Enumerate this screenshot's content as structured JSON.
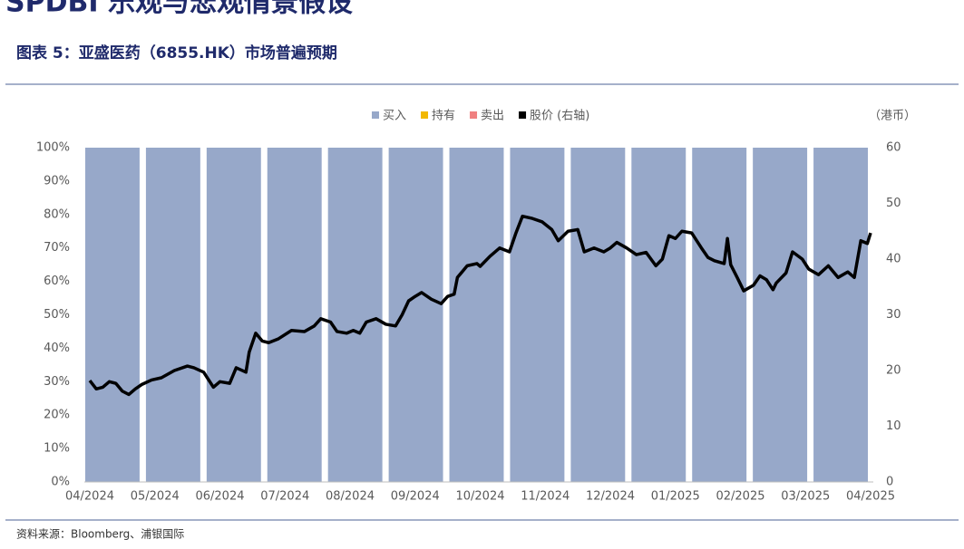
{
  "header": {
    "title": "SPDBI 乐观与悲观情景假设"
  },
  "figure_title": "图表 5：亚盛医药（6855.HK）市场普遍预期",
  "source": "资料来源：Bloomberg、浦银国际",
  "chart_data": {
    "type": "stacked-bar-line",
    "y2_unit": "（港币）",
    "categories": [
      null,
      null,
      null,
      null,
      null,
      null,
      null,
      null,
      null,
      null,
      null,
      null,
      null
    ],
    "series": [
      {
        "name": "买入",
        "color": "#97a8c9",
        "values": [
          100,
          100,
          100,
          100,
          100,
          100,
          100,
          100,
          100,
          100,
          100,
          100,
          100
        ]
      },
      {
        "name": "持有",
        "color": "#f2b800",
        "values": [
          0,
          0,
          0,
          0,
          0,
          0,
          0,
          0,
          0,
          0,
          0,
          0,
          0
        ]
      },
      {
        "name": "卖出",
        "color": "#f08080",
        "values": [
          0,
          0,
          0,
          0,
          0,
          0,
          0,
          0,
          0,
          0,
          0,
          0,
          0
        ]
      },
      {
        "name": "股价 (右轴)",
        "color": "#000000",
        "axis": "y2",
        "type": "line",
        "x": [
          0,
          0.1,
          0.2,
          0.3,
          0.4,
          0.5,
          0.6,
          0.7,
          0.8,
          0.95,
          1.1,
          1.3,
          1.5,
          1.6,
          1.75,
          1.9,
          2.0,
          2.15,
          2.25,
          2.4,
          2.45,
          2.55,
          2.65,
          2.75,
          2.9,
          3.1,
          3.3,
          3.45,
          3.55,
          3.7,
          3.8,
          3.95,
          4.05,
          4.15,
          4.25,
          4.4,
          4.55,
          4.7,
          4.8,
          4.9,
          5.0,
          5.1,
          5.25,
          5.4,
          5.5,
          5.6,
          5.65,
          5.8,
          5.95,
          6.0,
          6.15,
          6.3,
          6.45,
          6.55,
          6.65,
          6.8,
          6.95,
          7.1,
          7.2,
          7.35,
          7.5,
          7.6,
          7.75,
          7.9,
          8.0,
          8.1,
          8.25,
          8.4,
          8.55,
          8.7,
          8.8,
          8.9,
          9.0,
          9.1,
          9.25,
          9.4,
          9.5,
          9.6,
          9.75,
          9.8,
          9.85,
          9.95,
          10.05,
          10.2,
          10.3,
          10.4,
          10.5,
          10.55,
          10.7,
          10.8,
          10.95,
          11.05,
          11.2,
          11.35,
          11.5,
          11.65,
          11.75,
          11.85,
          11.95,
          12.0
        ],
        "values": [
          18.2,
          16.7,
          17,
          18,
          17.7,
          16.3,
          15.7,
          16.7,
          17.5,
          18.3,
          18.7,
          20,
          20.8,
          20.5,
          19.7,
          17,
          18,
          17.7,
          20.5,
          19.7,
          23.3,
          26.7,
          25.3,
          25,
          25.7,
          27.2,
          27,
          28,
          29.3,
          28.7,
          27,
          26.7,
          27.2,
          26.7,
          28.7,
          29.3,
          28.3,
          28,
          30,
          32.5,
          33.3,
          34,
          32.8,
          32,
          33.3,
          33.7,
          36.7,
          38.8,
          39.2,
          38.7,
          40.5,
          42,
          41.3,
          44.7,
          47.7,
          47.3,
          46.7,
          45.3,
          43.3,
          45,
          45.3,
          41.3,
          42,
          41.3,
          42,
          43,
          42,
          40.8,
          41.2,
          38.8,
          40,
          44.2,
          43.7,
          45,
          44.7,
          42,
          40.3,
          39.7,
          39.2,
          43.7,
          39,
          36.7,
          34.3,
          35.3,
          37,
          36.3,
          34.5,
          35.7,
          37.5,
          41.3,
          40,
          38.2,
          37.2,
          38.8,
          36.7,
          37.7,
          36.7,
          43.3,
          42.8,
          44.7
        ]
      }
    ],
    "ylim": [
      0,
      100
    ],
    "yticks": [
      {
        "value": 0,
        "label": "0%"
      },
      {
        "value": 10,
        "label": "10%"
      },
      {
        "value": 20,
        "label": "20%"
      },
      {
        "value": 30,
        "label": "30%"
      },
      {
        "value": 40,
        "label": "40%"
      },
      {
        "value": 50,
        "label": "50%"
      },
      {
        "value": 60,
        "label": "60%"
      },
      {
        "value": 70,
        "label": "70%"
      },
      {
        "value": 80,
        "label": "80%"
      },
      {
        "value": 90,
        "label": "90%"
      },
      {
        "value": 100,
        "label": "100%"
      }
    ],
    "y2lim": [
      0,
      60
    ],
    "y2ticks": [
      0,
      10,
      20,
      30,
      40,
      50,
      60
    ],
    "xlim": [
      0,
      12
    ],
    "xticks": [
      {
        "value": 0,
        "label": "04/2024"
      },
      {
        "value": 1,
        "label": "05/2024"
      },
      {
        "value": 2,
        "label": "06/2024"
      },
      {
        "value": 3,
        "label": "07/2024"
      },
      {
        "value": 4,
        "label": "08/2024"
      },
      {
        "value": 5,
        "label": "09/2024"
      },
      {
        "value": 6,
        "label": "10/2024"
      },
      {
        "value": 7,
        "label": "11/2024"
      },
      {
        "value": 8,
        "label": "12/2024"
      },
      {
        "value": 9,
        "label": "01/2025"
      },
      {
        "value": 10,
        "label": "02/2025"
      },
      {
        "value": 11,
        "label": "03/2025"
      },
      {
        "value": 12,
        "label": "04/2025"
      }
    ]
  }
}
